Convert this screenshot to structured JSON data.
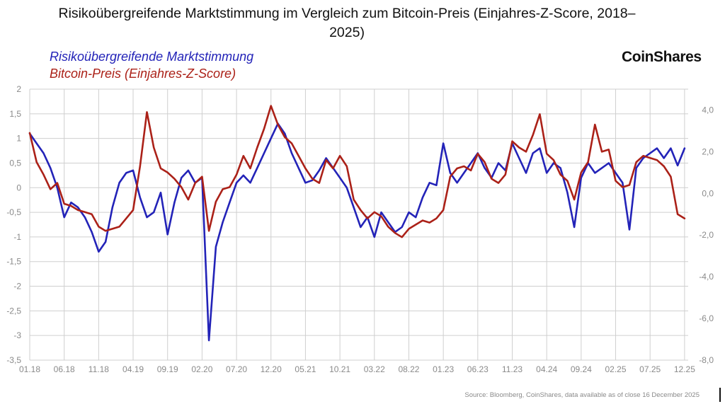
{
  "title": "Risikoübergreifende Marktstimmung im Vergleich zum Bitcoin-Preis (Einjahres-Z-Score, 2018–2025)",
  "brand": "CoinShares",
  "source": "Source: Bloomberg, CoinShares, data available as of close 16 December 2025",
  "colors": {
    "sentiment": "#2323b8",
    "bitcoin": "#ab2118",
    "grid": "#cfcfcf",
    "tick": "#8a8a8a"
  },
  "chart_data": {
    "type": "line",
    "title": "Risikoübergreifende Marktstimmung im Vergleich zum Bitcoin-Preis (Einjahres-Z-Score, 2018–2025)",
    "x_ticks": [
      "01.18",
      "06.18",
      "11.18",
      "04.19",
      "09.19",
      "02.20",
      "07.20",
      "12.20",
      "05.21",
      "10.21",
      "03.22",
      "08.22",
      "01.23",
      "06.23",
      "11.23",
      "04.24",
      "09.24",
      "02.25",
      "07.25",
      "12.25"
    ],
    "y_left": {
      "ticks": [
        "2",
        "1,5",
        "1",
        "0,5",
        "0",
        "-0,5",
        "-1",
        "-1,5",
        "-2",
        "-2,5",
        "-3",
        "-3,5"
      ],
      "range": [
        -3.5,
        2
      ]
    },
    "y_right": {
      "ticks": [
        "4,0",
        "2,0",
        "0,0",
        "-2,0",
        "-4,0",
        "-6,0",
        "-8,0"
      ],
      "range": [
        -8,
        5
      ]
    },
    "grid": true,
    "legend_position": "top-left",
    "series": [
      {
        "name": "Risikoübergreifende Marktstimmung",
        "axis": "left",
        "x": [
          "2018-01",
          "2018-02",
          "2018-03",
          "2018-04",
          "2018-05",
          "2018-06",
          "2018-07",
          "2018-08",
          "2018-09",
          "2018-10",
          "2018-11",
          "2018-12",
          "2019-01",
          "2019-02",
          "2019-03",
          "2019-04",
          "2019-05",
          "2019-06",
          "2019-07",
          "2019-08",
          "2019-09",
          "2019-10",
          "2019-11",
          "2019-12",
          "2020-01",
          "2020-02",
          "2020-03",
          "2020-04",
          "2020-05",
          "2020-06",
          "2020-07",
          "2020-08",
          "2020-09",
          "2020-10",
          "2020-11",
          "2020-12",
          "2021-01",
          "2021-02",
          "2021-03",
          "2021-04",
          "2021-05",
          "2021-06",
          "2021-07",
          "2021-08",
          "2021-09",
          "2021-10",
          "2021-11",
          "2021-12",
          "2022-01",
          "2022-02",
          "2022-03",
          "2022-04",
          "2022-05",
          "2022-06",
          "2022-07",
          "2022-08",
          "2022-09",
          "2022-10",
          "2022-11",
          "2022-12",
          "2023-01",
          "2023-02",
          "2023-03",
          "2023-04",
          "2023-05",
          "2023-06",
          "2023-07",
          "2023-08",
          "2023-09",
          "2023-10",
          "2023-11",
          "2023-12",
          "2024-01",
          "2024-02",
          "2024-03",
          "2024-04",
          "2024-05",
          "2024-06",
          "2024-07",
          "2024-08",
          "2024-09",
          "2024-10",
          "2024-11",
          "2024-12",
          "2025-01",
          "2025-02",
          "2025-03",
          "2025-04",
          "2025-05",
          "2025-06",
          "2025-07",
          "2025-08",
          "2025-09",
          "2025-10",
          "2025-11",
          "2025-12"
        ],
        "values": [
          1.1,
          0.9,
          0.7,
          0.4,
          0.0,
          -0.6,
          -0.3,
          -0.4,
          -0.6,
          -0.9,
          -1.3,
          -1.1,
          -0.4,
          0.1,
          0.3,
          0.35,
          -0.2,
          -0.6,
          -0.5,
          -0.1,
          -0.95,
          -0.3,
          0.2,
          0.35,
          0.1,
          0.2,
          -3.1,
          -1.2,
          -0.7,
          -0.3,
          0.1,
          0.25,
          0.1,
          0.4,
          0.7,
          1.0,
          1.3,
          1.1,
          0.7,
          0.4,
          0.1,
          0.15,
          0.35,
          0.6,
          0.4,
          0.2,
          0.0,
          -0.4,
          -0.8,
          -0.6,
          -1.0,
          -0.5,
          -0.7,
          -0.9,
          -0.8,
          -0.5,
          -0.6,
          -0.2,
          0.1,
          0.05,
          0.9,
          0.3,
          0.1,
          0.3,
          0.5,
          0.7,
          0.4,
          0.2,
          0.5,
          0.35,
          0.9,
          0.6,
          0.3,
          0.7,
          0.8,
          0.3,
          0.5,
          0.4,
          -0.1,
          -0.8,
          0.2,
          0.5,
          0.3,
          0.4,
          0.5,
          0.3,
          0.1,
          -0.85,
          0.4,
          0.6,
          0.7,
          0.8,
          0.6,
          0.8,
          0.45,
          0.8
        ]
      },
      {
        "name": "Bitcoin-Preis (Einjahres-Z-Score)",
        "axis": "right",
        "x": [
          "2018-01",
          "2018-02",
          "2018-03",
          "2018-04",
          "2018-05",
          "2018-06",
          "2018-07",
          "2018-08",
          "2018-09",
          "2018-10",
          "2018-11",
          "2018-12",
          "2019-01",
          "2019-02",
          "2019-03",
          "2019-04",
          "2019-05",
          "2019-06",
          "2019-07",
          "2019-08",
          "2019-09",
          "2019-10",
          "2019-11",
          "2019-12",
          "2020-01",
          "2020-02",
          "2020-03",
          "2020-04",
          "2020-05",
          "2020-06",
          "2020-07",
          "2020-08",
          "2020-09",
          "2020-10",
          "2020-11",
          "2020-12",
          "2021-01",
          "2021-02",
          "2021-03",
          "2021-04",
          "2021-05",
          "2021-06",
          "2021-07",
          "2021-08",
          "2021-09",
          "2021-10",
          "2021-11",
          "2021-12",
          "2022-01",
          "2022-02",
          "2022-03",
          "2022-04",
          "2022-05",
          "2022-06",
          "2022-07",
          "2022-08",
          "2022-09",
          "2022-10",
          "2022-11",
          "2022-12",
          "2023-01",
          "2023-02",
          "2023-03",
          "2023-04",
          "2023-05",
          "2023-06",
          "2023-07",
          "2023-08",
          "2023-09",
          "2023-10",
          "2023-11",
          "2023-12",
          "2024-01",
          "2024-02",
          "2024-03",
          "2024-04",
          "2024-05",
          "2024-06",
          "2024-07",
          "2024-08",
          "2024-09",
          "2024-10",
          "2024-11",
          "2024-12",
          "2025-01",
          "2025-02",
          "2025-03",
          "2025-04",
          "2025-05",
          "2025-06",
          "2025-07",
          "2025-08",
          "2025-09",
          "2025-10",
          "2025-11",
          "2025-12"
        ],
        "values": [
          2.9,
          1.5,
          0.9,
          0.2,
          0.5,
          -0.5,
          -0.6,
          -0.8,
          -0.9,
          -1.0,
          -1.6,
          -1.8,
          -1.7,
          -1.6,
          -1.2,
          -0.8,
          1.3,
          3.9,
          2.2,
          1.2,
          1.0,
          0.7,
          0.3,
          -0.3,
          0.5,
          0.8,
          -1.8,
          -0.4,
          0.2,
          0.3,
          0.9,
          1.8,
          1.2,
          2.2,
          3.1,
          4.2,
          3.3,
          2.7,
          2.4,
          1.8,
          1.2,
          0.7,
          0.5,
          1.6,
          1.2,
          1.8,
          1.3,
          -0.3,
          -0.8,
          -1.2,
          -0.9,
          -1.1,
          -1.6,
          -1.9,
          -2.1,
          -1.7,
          -1.5,
          -1.3,
          -1.4,
          -1.2,
          -0.8,
          0.8,
          1.2,
          1.3,
          1.1,
          1.9,
          1.5,
          0.7,
          0.5,
          0.9,
          2.5,
          2.2,
          2.0,
          2.8,
          3.8,
          1.9,
          1.6,
          0.9,
          0.6,
          -0.3,
          1.0,
          1.5,
          3.3,
          2.0,
          2.1,
          0.6,
          0.3,
          0.4,
          1.5,
          1.8,
          1.7,
          1.6,
          1.3,
          0.8,
          -1.0,
          -1.2
        ]
      }
    ]
  }
}
